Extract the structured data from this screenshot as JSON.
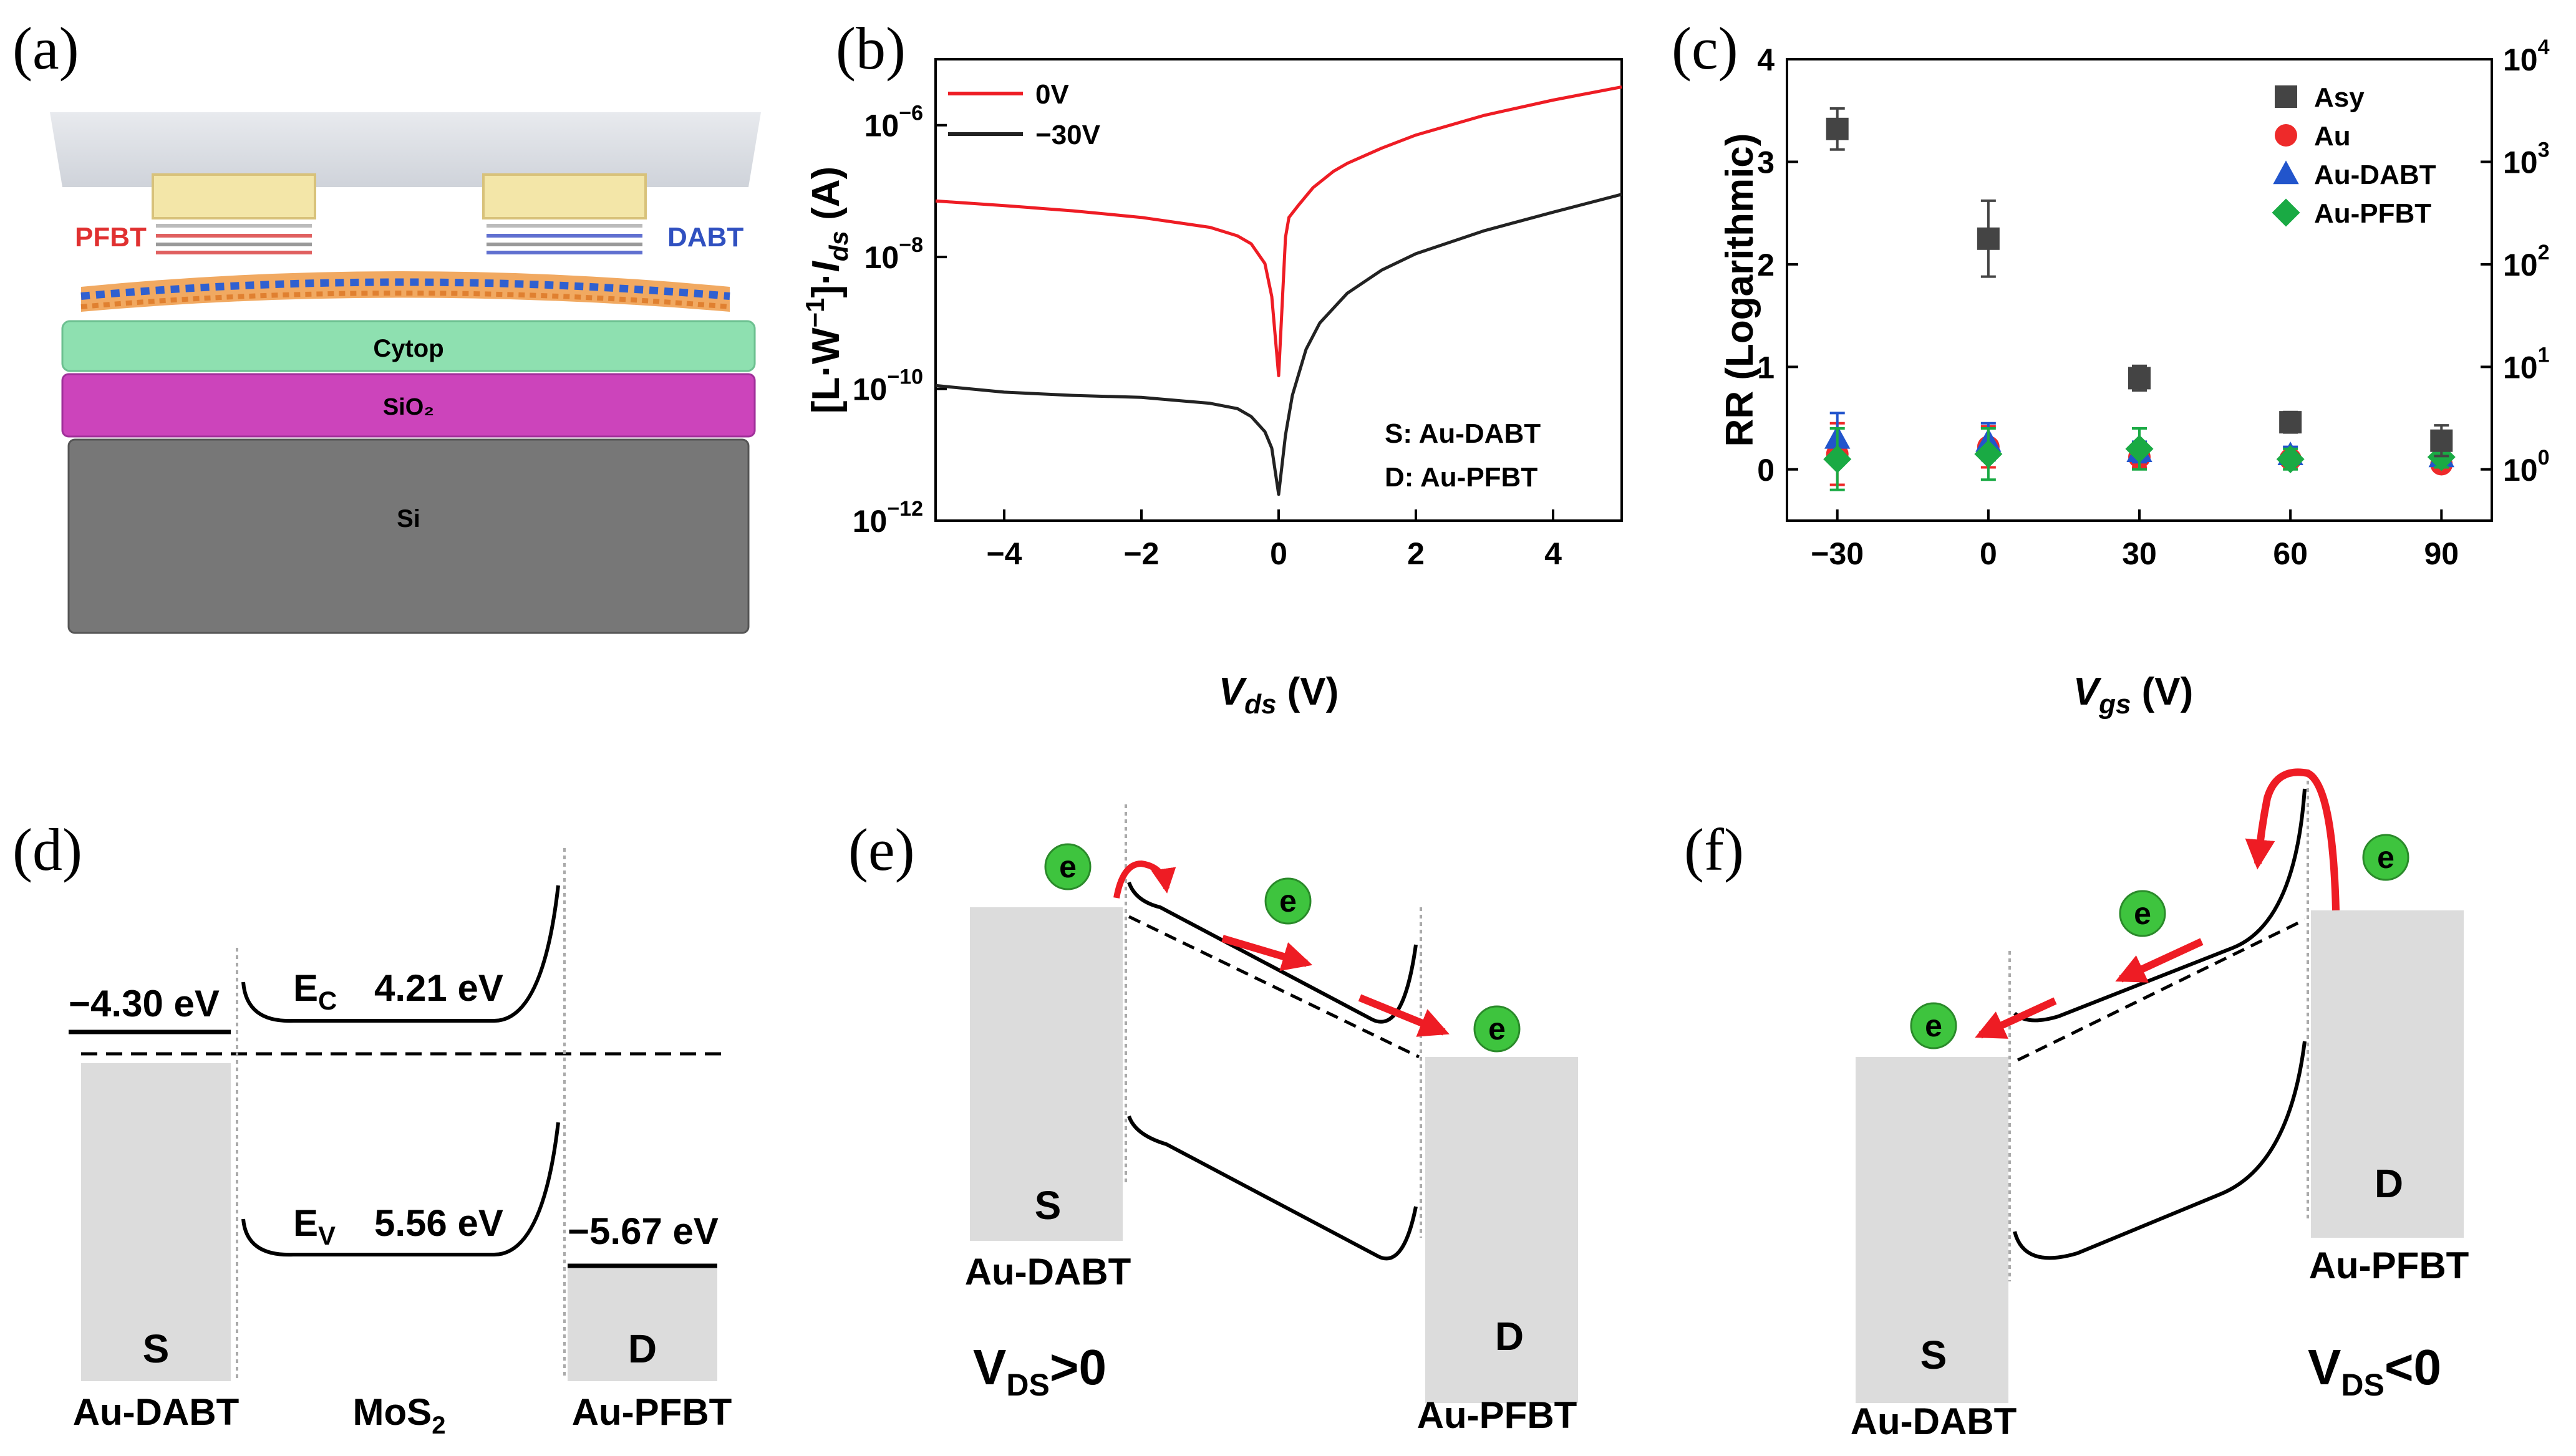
{
  "panel_labels": {
    "a": "(a)",
    "b": "(b)",
    "c": "(c)",
    "d": "(d)",
    "e": "(e)",
    "f": "(f)"
  },
  "colors": {
    "red": "#ee1c24",
    "black": "#222222",
    "gray": "#444444",
    "au": "#ee2a2a",
    "dabt": "#2255cc",
    "pfbt": "#1aaa44",
    "electron": "#3ec43e",
    "electrode": "#dcdcdc",
    "cytop": "#8ee0b0",
    "sio2": "#cc44bb",
    "si": "#777777"
  },
  "panel_a": {
    "pfbt": "PFBT",
    "dabt": "DABT",
    "cytop": "Cytop",
    "sio2": "SiO₂",
    "si": "Si"
  },
  "chart_data": [
    {
      "type": "line",
      "panel": "b",
      "xlabel": "Vds (V)",
      "xlabel_main": "V",
      "xlabel_sub": "ds",
      "xlabel_unit": " (V)",
      "ylabel": "[L·W⁻¹]·Ids (A)",
      "ylabel_pre": "[L·W",
      "ylabel_sup": "−1",
      "ylabel_mid": "]·",
      "ylabel_i": "I",
      "ylabel_sub": "ds",
      "ylabel_unit": " (A)",
      "xlim": [
        -5,
        5
      ],
      "ylim_log10": [
        -12,
        -5
      ],
      "xticks": [
        -4,
        -2,
        0,
        2,
        4
      ],
      "xtick_labels": [
        "−4",
        "−2",
        "0",
        "2",
        "4"
      ],
      "yticks_exp": [
        -12,
        -10,
        -8,
        -6
      ],
      "ytick_labels": [
        "−12",
        "−10",
        "−8",
        "−6"
      ],
      "legend": [
        "0V",
        "−30V"
      ],
      "annotations": [
        "S: Au-DABT",
        "D: Au-PFBT"
      ],
      "series": [
        {
          "name": "0V",
          "color": "#ee1c24",
          "x": [
            -5,
            -4,
            -3,
            -2,
            -1,
            -0.6,
            -0.4,
            -0.2,
            -0.1,
            0,
            0.1,
            0.15,
            0.3,
            0.5,
            0.8,
            1,
            1.5,
            2,
            3,
            4,
            5
          ],
          "log10y": [
            -7.15,
            -7.22,
            -7.3,
            -7.4,
            -7.55,
            -7.68,
            -7.8,
            -8.1,
            -8.6,
            -9.8,
            -7.7,
            -7.4,
            -7.2,
            -6.95,
            -6.7,
            -6.58,
            -6.35,
            -6.15,
            -5.85,
            -5.62,
            -5.42
          ]
        },
        {
          "name": "−30V",
          "color": "#222222",
          "x": [
            -5,
            -4,
            -3,
            -2,
            -1,
            -0.6,
            -0.4,
            -0.2,
            -0.1,
            0,
            0.1,
            0.2,
            0.4,
            0.6,
            1,
            1.5,
            2,
            3,
            4,
            5
          ],
          "log10y": [
            -9.95,
            -10.05,
            -10.1,
            -10.13,
            -10.22,
            -10.3,
            -10.42,
            -10.65,
            -10.9,
            -11.6,
            -10.7,
            -10.1,
            -9.4,
            -9.0,
            -8.55,
            -8.2,
            -7.95,
            -7.6,
            -7.32,
            -7.05
          ]
        }
      ]
    },
    {
      "type": "scatter",
      "panel": "c",
      "xlabel": "Vgs (V)",
      "xlabel_main": "V",
      "xlabel_sub": "gs",
      "xlabel_unit": " (V)",
      "ylabel": "RR (Logarithmic)",
      "xlim": [
        -40,
        100
      ],
      "ylim": [
        -0.5,
        4
      ],
      "xticks": [
        -30,
        0,
        30,
        60,
        90
      ],
      "xtick_labels": [
        "−30",
        "0",
        "30",
        "60",
        "90"
      ],
      "yticks": [
        0,
        1,
        2,
        3,
        4
      ],
      "ytick_labels": [
        "0",
        "1",
        "2",
        "3",
        "4"
      ],
      "right_axis_exp": [
        0,
        1,
        2,
        3,
        4
      ],
      "right_axis_labels": [
        "10",
        "10",
        "10",
        "10",
        "10"
      ],
      "right_axis_sup": [
        "0",
        "1",
        "2",
        "3",
        "4"
      ],
      "legend": [
        "Asy",
        "Au",
        "Au-DABT",
        "Au-PFBT"
      ],
      "series": [
        {
          "name": "Asy",
          "color": "#444444",
          "marker": "square",
          "x": [
            -30,
            0,
            30,
            60,
            90
          ],
          "y": [
            3.32,
            2.25,
            0.89,
            0.46,
            0.28
          ],
          "err": [
            0.2,
            0.37,
            0.12,
            0.1,
            0.15
          ]
        },
        {
          "name": "Au",
          "color": "#ee2a2a",
          "marker": "circle",
          "x": [
            -30,
            0,
            30,
            60,
            90
          ],
          "y": [
            0.15,
            0.22,
            0.12,
            0.1,
            0.05
          ],
          "err": [
            0.3,
            0.2,
            0.1,
            0.07,
            0.07
          ]
        },
        {
          "name": "Au-DABT",
          "color": "#2255cc",
          "marker": "triangle",
          "x": [
            -30,
            0,
            30,
            60,
            90
          ],
          "y": [
            0.3,
            0.27,
            0.17,
            0.14,
            0.12
          ],
          "err": [
            0.25,
            0.18,
            0.1,
            0.08,
            0.07
          ]
        },
        {
          "name": "Au-PFBT",
          "color": "#1aaa44",
          "marker": "diamond",
          "x": [
            -30,
            0,
            30,
            60,
            90
          ],
          "y": [
            0.1,
            0.15,
            0.2,
            0.1,
            0.12
          ],
          "err": [
            0.3,
            0.25,
            0.2,
            0.1,
            0.1
          ]
        }
      ]
    }
  ],
  "panel_d": {
    "left_wf": "−4.30 eV",
    "ec_label": "E",
    "ec_sub": "C",
    "ec_val": "4.21 eV",
    "ev_label": "E",
    "ev_sub": "V",
    "ev_val": "5.56 eV",
    "right_wf": "−5.67 eV",
    "s": "S",
    "d": "D",
    "left_name": "Au-DABT",
    "mid_name": "MoS",
    "mid_sub": "2",
    "right_name": "Au-PFBT"
  },
  "panel_e": {
    "electron": "e",
    "s": "S",
    "d": "D",
    "left_name": "Au-DABT",
    "right_name": "Au-PFBT",
    "cond_main": "V",
    "cond_sub": "DS",
    "cond_rest": ">0"
  },
  "panel_f": {
    "electron": "e",
    "s": "S",
    "d": "D",
    "left_name": "Au-DABT",
    "right_name": "Au-PFBT",
    "cond_main": "V",
    "cond_sub": "DS",
    "cond_rest": "<0"
  }
}
